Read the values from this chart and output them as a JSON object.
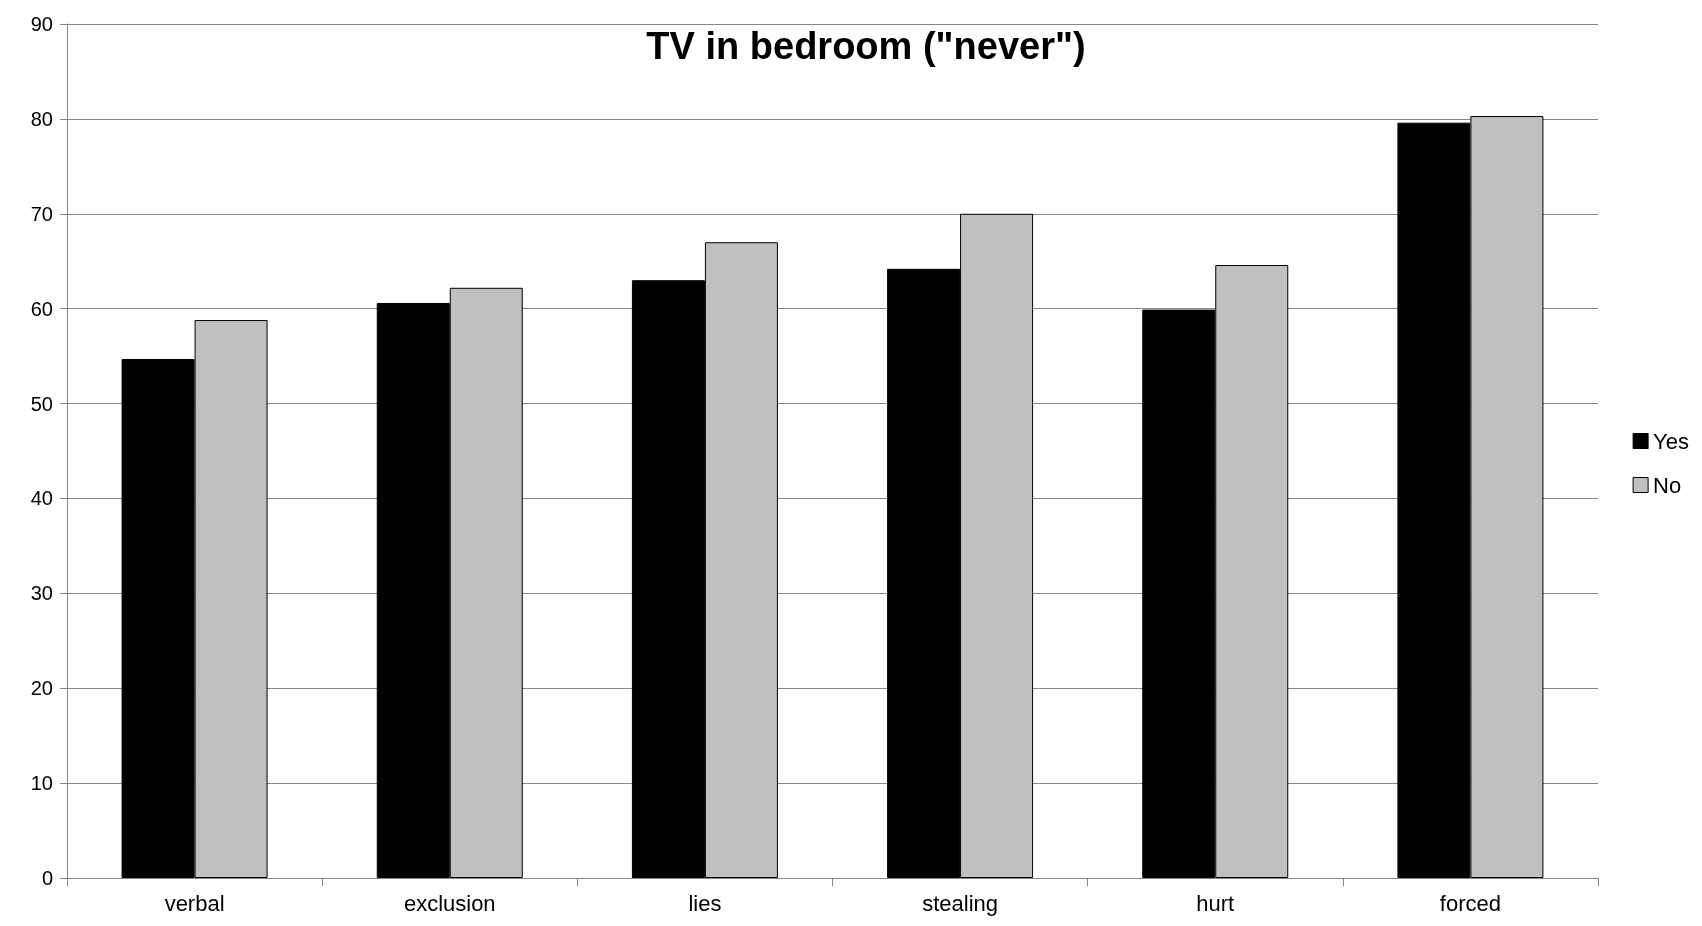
{
  "chart_data": {
    "type": "bar",
    "title": "TV in bedroom (\"never\")",
    "categories": [
      "verbal",
      "exclusion",
      "lies",
      "stealing",
      "hurt",
      "forced"
    ],
    "series": [
      {
        "name": "Yes",
        "color": "#000000",
        "values": [
          54.7,
          60.6,
          63.0,
          64.2,
          59.9,
          79.6
        ]
      },
      {
        "name": "No",
        "color": "#c0c0c0",
        "values": [
          58.8,
          62.2,
          67.0,
          70.0,
          64.6,
          80.3
        ]
      }
    ],
    "ylim": [
      0,
      90
    ],
    "yticks": [
      0,
      10,
      20,
      30,
      40,
      50,
      60,
      70,
      80,
      90
    ],
    "grid": "y",
    "legend": "right"
  }
}
